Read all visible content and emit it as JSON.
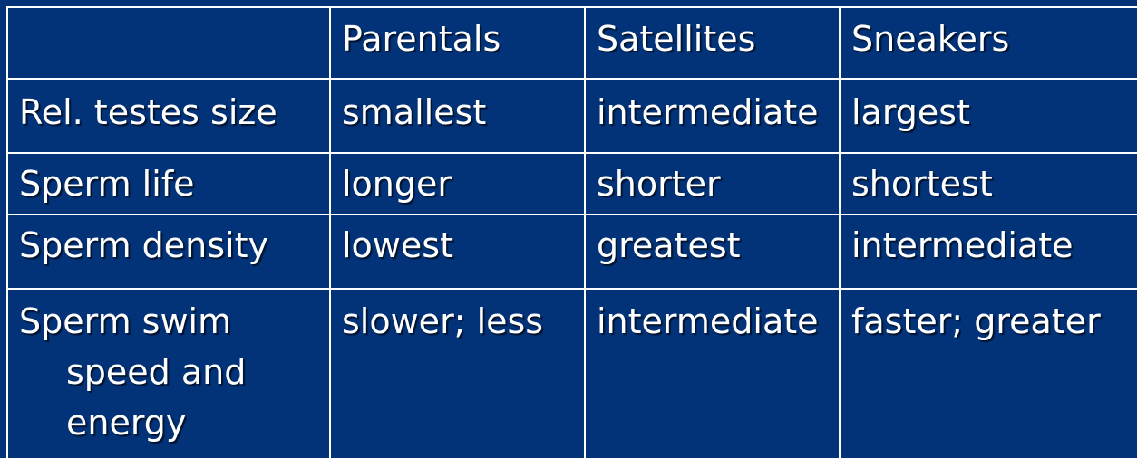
{
  "table": {
    "headers": [
      "",
      "Parentals",
      "Satellites",
      "Sneakers"
    ],
    "rows": [
      {
        "label": "Rel. testes size",
        "cells": [
          "smallest",
          "intermediate",
          "largest"
        ]
      },
      {
        "label": "Sperm life",
        "cells": [
          "longer",
          "shorter",
          "shortest"
        ]
      },
      {
        "label": "Sperm density",
        "cells": [
          "lowest",
          "greatest",
          "intermediate"
        ]
      },
      {
        "label_lines": [
          "Sperm swim",
          "speed and",
          "energy"
        ],
        "cells": [
          "slower; less",
          "intermediate",
          "faster; greater"
        ]
      }
    ]
  }
}
